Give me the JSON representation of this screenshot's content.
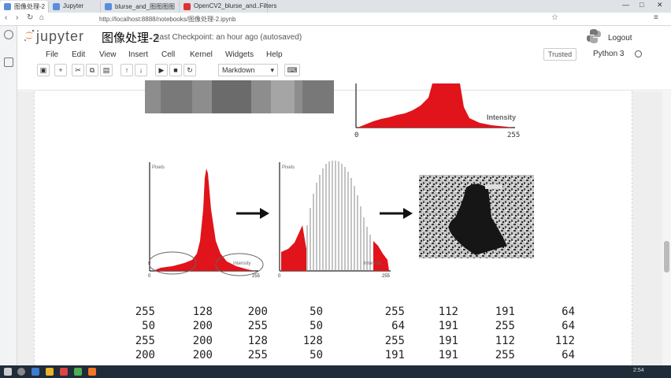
{
  "browser": {
    "tabs": [
      {
        "label": "图像处理-2",
        "color": "#5a8ed8"
      },
      {
        "label": "Jupyter",
        "color": "#5a8ed8"
      },
      {
        "label": "blurse_and_图图图图",
        "color": "#5a8ed8"
      },
      {
        "label": "OpenCV2_blurse_and..Filters",
        "color": "#d33"
      }
    ],
    "url": "http://localhost:8888/notebooks/图像处理-2.ipynb",
    "window_controls": [
      "—",
      "□",
      "✕"
    ]
  },
  "jupyter": {
    "logo": "jupyter",
    "notebook_title": "图像处理-2",
    "checkpoint": "Last Checkpoint: an hour ago (autosaved)",
    "logout": "Logout",
    "menu": [
      "File",
      "Edit",
      "View",
      "Insert",
      "Cell",
      "Kernel",
      "Widgets",
      "Help"
    ],
    "trusted": "Trusted",
    "kernel_name": "Python 3",
    "cell_type": "Markdown",
    "toolbar_icons": [
      "save-icon",
      "plus-icon",
      "cut-icon",
      "copy-icon",
      "paste-icon",
      "arrow-up-icon",
      "arrow-down-icon",
      "run-icon",
      "stop-icon",
      "restart-icon",
      "keyboard-icon"
    ]
  },
  "figures": {
    "top_hist": {
      "label": "Intensity",
      "x0": "0",
      "x1": "255"
    },
    "hist_orig": {
      "ylabel": "Pixels",
      "xlabel": "Intensity",
      "x0": "0",
      "x1": "255"
    },
    "hist_eq": {
      "ylabel": "Pixels",
      "xlabel": "Intensity",
      "x0": "0",
      "x1": "255"
    }
  },
  "matrix_left": [
    [
      "255",
      "128",
      "200",
      "50"
    ],
    [
      "50",
      "200",
      "255",
      "50"
    ],
    [
      "255",
      "200",
      "128",
      "128"
    ],
    [
      "200",
      "200",
      "255",
      "50"
    ]
  ],
  "matrix_right": [
    [
      "255",
      "112",
      "191",
      "64"
    ],
    [
      "64",
      "191",
      "255",
      "64"
    ],
    [
      "255",
      "191",
      "112",
      "112"
    ],
    [
      "191",
      "191",
      "255",
      "64"
    ]
  ],
  "colors": {
    "accent": "#f37726",
    "hist_red": "#e0141a",
    "taskbar": "#1f2c3a"
  },
  "taskbar": {
    "clock": "2:54"
  }
}
